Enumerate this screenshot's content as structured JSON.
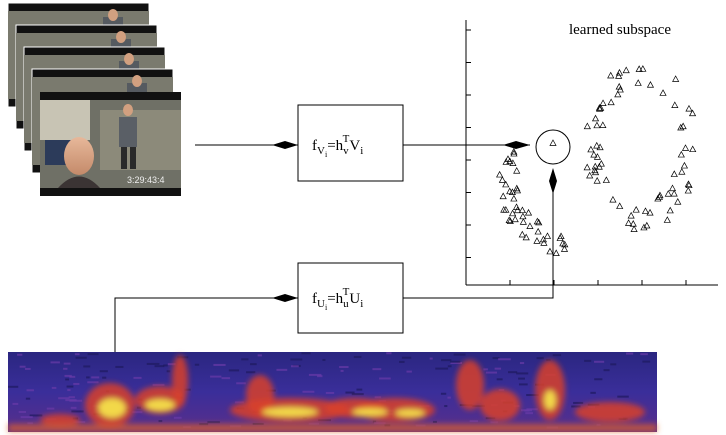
{
  "video": {
    "timestamp": "3:29:43:4"
  },
  "plot": {
    "title": "learned subspace"
  },
  "nodes": [
    {
      "f": "f",
      "sub": "V",
      "subsub": "i",
      "eq": "=h",
      "hsub": "v",
      "sup": "T",
      "var": "V",
      "varsub": "i"
    },
    {
      "f": "f",
      "sub": "U",
      "subsub": "i",
      "eq": "=h",
      "hsub": "u",
      "sup": "T",
      "var": "U",
      "varsub": "i"
    }
  ]
}
